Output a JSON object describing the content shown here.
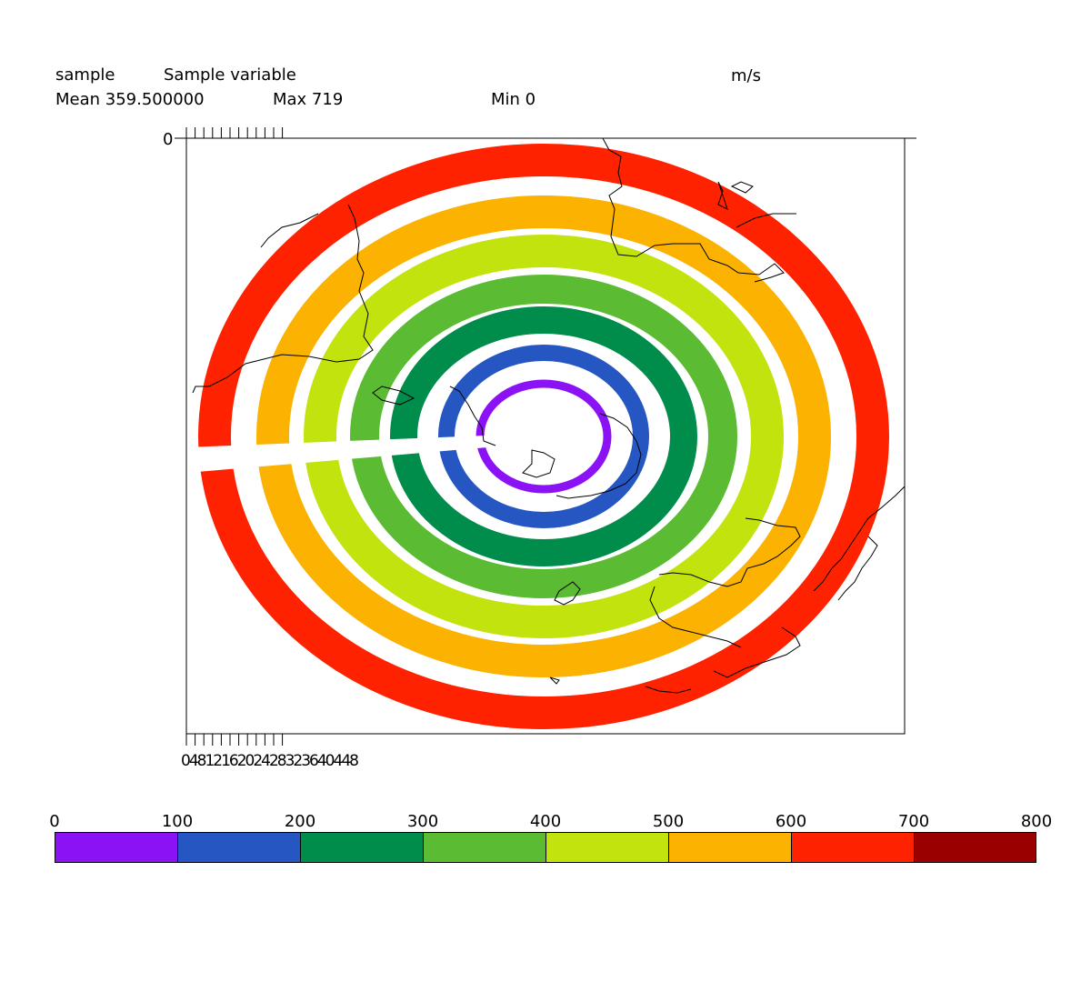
{
  "header": {
    "var_name": "sample",
    "long_name": "Sample variable",
    "units": "m/s",
    "mean_label": "Mean 359.500000",
    "max_label": "Max 719",
    "min_label": "Min 0"
  },
  "axes": {
    "y_tick_label": "0",
    "x_tick_labels_text": "0481216202428323640448"
  },
  "chart_data": {
    "type": "heatmap",
    "projection": "polar stereographic (south)",
    "rings": [
      {
        "range": [
          0,
          100
        ],
        "color": "#8a12f5"
      },
      {
        "range": [
          100,
          200
        ],
        "color": "#2556c2"
      },
      {
        "range": [
          200,
          300
        ],
        "color": "#008c4a"
      },
      {
        "range": [
          300,
          400
        ],
        "color": "#5bbb32"
      },
      {
        "range": [
          400,
          500
        ],
        "color": "#c3e30f"
      },
      {
        "range": [
          500,
          600
        ],
        "color": "#fbb200"
      },
      {
        "range": [
          600,
          700
        ],
        "color": "#ff2200"
      }
    ],
    "colorbar": {
      "levels": [
        "0",
        "100",
        "200",
        "300",
        "400",
        "500",
        "600",
        "700",
        "800"
      ],
      "colors": [
        "#8a12f5",
        "#2556c2",
        "#008c4a",
        "#5bbb32",
        "#c3e30f",
        "#fbb200",
        "#ff2200",
        "#9b0000"
      ]
    },
    "mean": 359.5,
    "max": 719,
    "min": 0,
    "units": "m/s"
  }
}
